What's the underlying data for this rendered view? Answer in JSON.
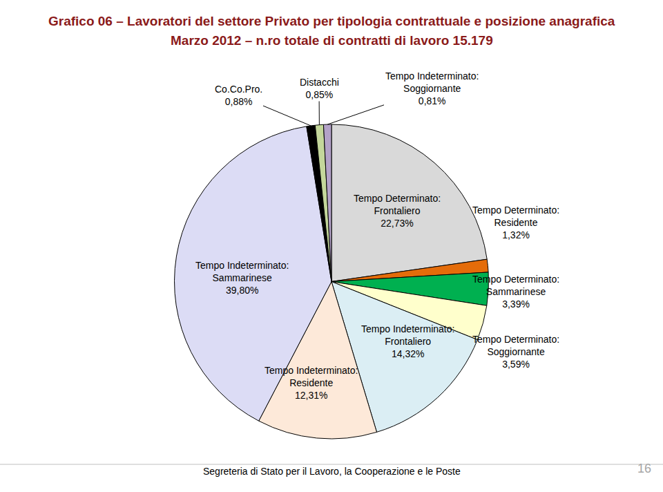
{
  "chart_data": {
    "type": "pie",
    "title": "Grafico 06 – Lavoratori del settore Privato per tipologia contrattuale e posizione anagrafica",
    "subtitle": "Marzo 2012 – n.ro totale di contratti di lavoro 15.179",
    "categories": [
      "Tempo Determinato: Frontaliero",
      "Tempo Determinato: Residente",
      "Tempo Determinato: Sammarinese",
      "Tempo Determinato: Soggiornante",
      "Tempo Indeterminato: Frontaliero",
      "Tempo Indeterminato: Residente",
      "Tempo Indeterminato: Sammarinese",
      "Co.Co.Pro.",
      "Distacchi",
      "Tempo Indeterminato: Soggiornante"
    ],
    "values": [
      22.73,
      1.32,
      3.39,
      3.59,
      14.32,
      12.31,
      39.8,
      0.88,
      0.85,
      0.81
    ],
    "value_labels": [
      "22,73%",
      "1,32%",
      "3,39%",
      "3,59%",
      "14,32%",
      "12,31%",
      "39,80%",
      "0,88%",
      "0,85%",
      "0,81%"
    ],
    "colors": [
      "#d9d9d9",
      "#e46c0a",
      "#00b050",
      "#ffffcc",
      "#dbeef4",
      "#fde9d9",
      "#dcdcf5",
      "#000000",
      "#c4d79b",
      "#b3a2c7"
    ],
    "data_labels": true,
    "annotations": [
      "Segreteria di Stato per il Lavoro, la Cooperazione e le Poste",
      "16"
    ]
  }
}
